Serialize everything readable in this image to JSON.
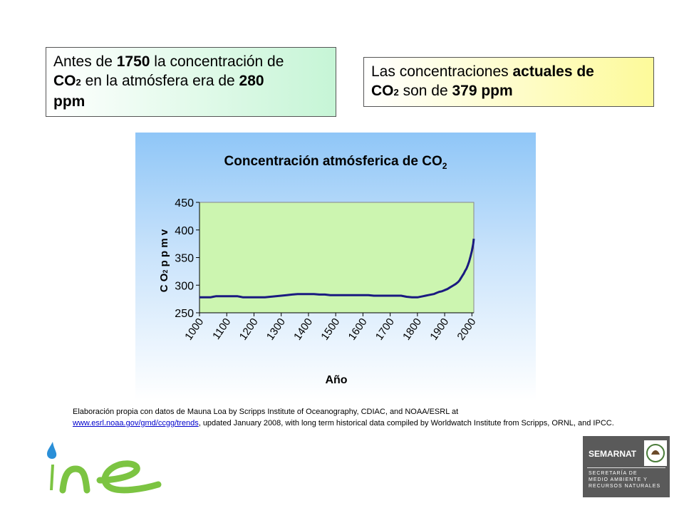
{
  "callout_left": {
    "line1_pre": "Antes de ",
    "year": "1750",
    "line1_post": " la concentración de",
    "co": "CO",
    "sub": "2",
    "line2_post": " en la atmósfera era de ",
    "value": "280",
    "unit": "ppm"
  },
  "callout_right": {
    "pre": "Las concentraciones ",
    "actuales": "actuales de",
    "co": "CO",
    "sub": "2",
    "mid": " son de ",
    "value": "379 ppm"
  },
  "chart_data": {
    "type": "line",
    "title": "Concentración atmósferica de CO",
    "title_sub": "2",
    "xlabel": "Año",
    "ylabel": "C O",
    "ylabel_sub": "2",
    "ylabel_tail": " p p m v",
    "ylim": [
      250,
      450
    ],
    "xlim": [
      1000,
      2007
    ],
    "x_ticks": [
      "1000",
      "1100",
      "1200",
      "1300",
      "1400",
      "1500",
      "1600",
      "1700",
      "1800",
      "1900",
      "2000"
    ],
    "y_ticks": [
      "250",
      "300",
      "350",
      "400",
      "450"
    ],
    "grid": false,
    "colors": {
      "plot_bg": "#ccf5b0",
      "line": "#1a1a80"
    },
    "series": [
      {
        "x": [
          1000,
          1020,
          1040,
          1050,
          1060,
          1080,
          1100,
          1120,
          1140,
          1150,
          1160,
          1180,
          1200,
          1220,
          1240,
          1260,
          1280,
          1300,
          1320,
          1340,
          1360,
          1380,
          1400,
          1420,
          1440,
          1460,
          1480,
          1500,
          1520,
          1540,
          1560,
          1580,
          1600,
          1620,
          1640,
          1660,
          1680,
          1700,
          1720,
          1740,
          1760,
          1780,
          1800,
          1820,
          1830,
          1840,
          1860,
          1870,
          1880,
          1890,
          1900,
          1910,
          1920,
          1930,
          1940,
          1950,
          1955,
          1960,
          1965,
          1970,
          1975,
          1980,
          1985,
          1990,
          1995,
          2000,
          2005,
          2007
        ],
        "y": [
          278,
          278,
          278,
          279,
          280,
          280,
          280,
          280,
          280,
          279,
          278,
          278,
          278,
          278,
          278,
          279,
          280,
          281,
          282,
          283,
          284,
          284,
          284,
          284,
          283,
          283,
          282,
          282,
          282,
          282,
          282,
          282,
          282,
          282,
          281,
          281,
          281,
          281,
          281,
          281,
          279,
          278,
          278,
          280,
          281,
          282,
          284,
          286,
          288,
          289,
          291,
          293,
          296,
          299,
          302,
          306,
          309,
          313,
          317,
          321,
          326,
          330,
          336,
          343,
          352,
          362,
          375,
          384
        ]
      }
    ]
  },
  "source_note": {
    "text1": "Elaboración propia con datos de Mauna Loa by Scripps Institute of Oceanography, CDIAC, and NOAA/ESRL at",
    "link": "www.esrl.noaa.gov/gmd/ccgg/trends",
    "text2": ", updated January 2008, with long term historical data compiled by Worldwatch Institute from Scripps, ORNL, and IPCC."
  },
  "semarnat": {
    "name": "SEMARNAT",
    "sub1": "SECRETARÍA DE",
    "sub2": "MEDIO AMBIENTE Y",
    "sub3": "RECURSOS NATURALES"
  }
}
